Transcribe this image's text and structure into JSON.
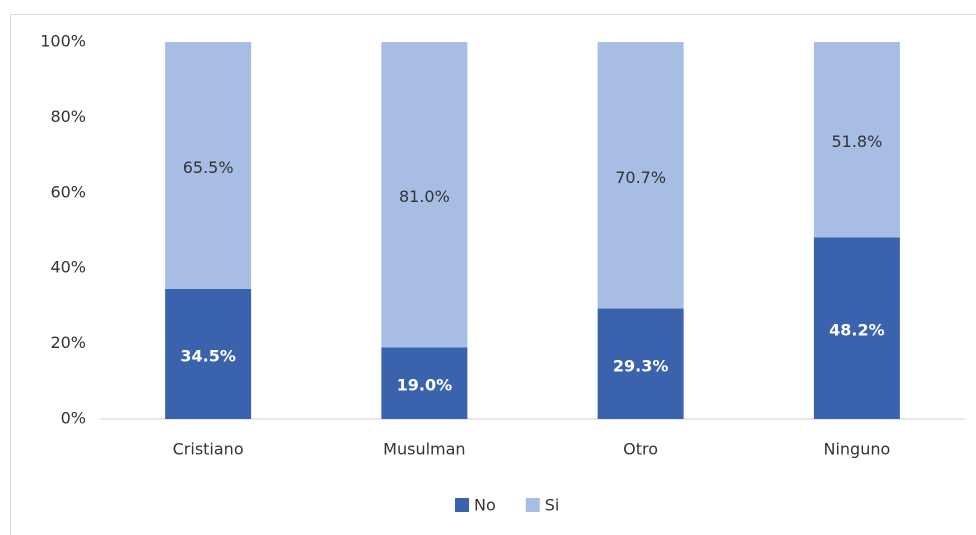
{
  "chart_data": {
    "type": "stacked_bar",
    "categories": [
      "Cristiano",
      "Musulman",
      "Otro",
      "Ninguno"
    ],
    "series": [
      {
        "name": "No",
        "color": "#3a62ad",
        "values": [
          34.5,
          19.0,
          29.3,
          48.2
        ],
        "value_labels": [
          "34.5%",
          "19.0%",
          "29.3%",
          "48.2%"
        ]
      },
      {
        "name": "Si",
        "color": "#a7bde3",
        "values": [
          65.5,
          81.0,
          70.7,
          51.8
        ],
        "value_labels": [
          "65.5%",
          "81.0%",
          "70.7%",
          "51.8%"
        ]
      }
    ],
    "ylim": [
      0,
      100
    ],
    "yticks": [
      {
        "value": 0,
        "label": "0%"
      },
      {
        "value": 20,
        "label": "20%"
      },
      {
        "value": 40,
        "label": "40%"
      },
      {
        "value": 60,
        "label": "60%"
      },
      {
        "value": 80,
        "label": "80%"
      },
      {
        "value": 100,
        "label": "100%"
      }
    ],
    "grid": false,
    "legend": "bottom"
  }
}
